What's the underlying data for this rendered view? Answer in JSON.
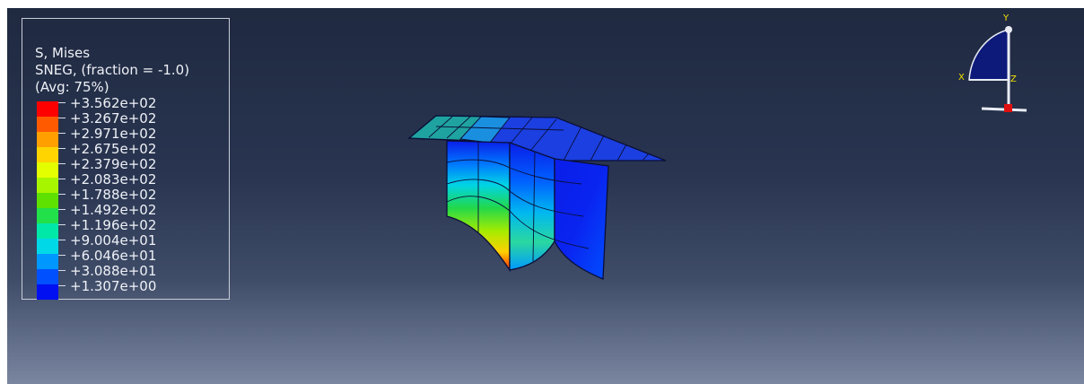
{
  "legend": {
    "title_lines": [
      "S, Mises",
      "SNEG, (fraction = -1.0)",
      "(Avg: 75%)"
    ],
    "values": [
      "+3.562e+02",
      "+3.267e+02",
      "+2.971e+02",
      "+2.675e+02",
      "+2.379e+02",
      "+2.083e+02",
      "+1.788e+02",
      "+1.492e+02",
      "+1.196e+02",
      "+9.004e+01",
      "+6.046e+01",
      "+3.088e+01",
      "+1.307e+00"
    ],
    "colors": [
      "#ff0000",
      "#ff5a00",
      "#ffa000",
      "#ffd400",
      "#e4ff00",
      "#a8f500",
      "#5ee000",
      "#22e04a",
      "#00e8a8",
      "#00d8e8",
      "#0098ff",
      "#0050ff",
      "#0010f0"
    ]
  },
  "triad": {
    "axis_y": "Y",
    "axis_x": "X",
    "axis_z": "Z"
  },
  "colors": {
    "background_top": "#1f2940",
    "background_bottom": "#7a86a0",
    "mesh_blue": "#0a1ee0",
    "mesh_teal": "#1fa3a0"
  }
}
